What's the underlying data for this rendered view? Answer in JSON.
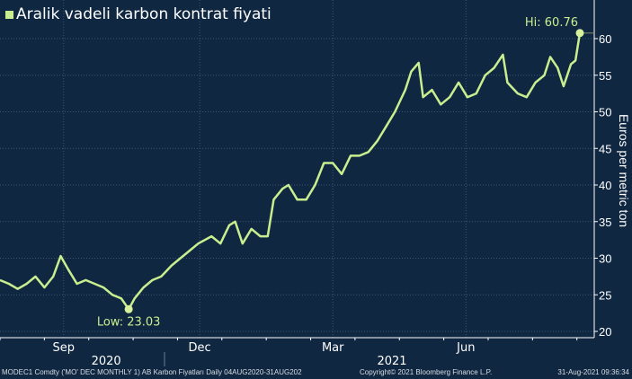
{
  "chart_data": {
    "type": "line",
    "title": "Aralik vadeli karbon kontrat fiyati",
    "ylabel": "Euros per metric ton",
    "xlabel": "",
    "ylim": [
      20,
      64
    ],
    "y_ticks": [
      20,
      25,
      30,
      35,
      40,
      45,
      50,
      55,
      60
    ],
    "x_unit": "days since 04-Aug-2020",
    "x_range": [
      0,
      392
    ],
    "month_labels": [
      {
        "label": "Sep",
        "day": 43
      },
      {
        "label": "Dec",
        "day": 135
      },
      {
        "label": "Mar",
        "day": 225
      },
      {
        "label": "Jun",
        "day": 315
      }
    ],
    "year_labels": [
      {
        "label": "2020",
        "day": 87
      },
      {
        "label": "2021",
        "day": 265
      }
    ],
    "grid": true,
    "line_color": "#c9ee8f",
    "background": "#0f2741",
    "series": [
      {
        "name": "Aralik vadeli karbon kontrat fiyati",
        "x": [
          0,
          6,
          12,
          18,
          24,
          30,
          36,
          41,
          46,
          52,
          58,
          64,
          70,
          76,
          82,
          87,
          91,
          97,
          103,
          109,
          116,
          122,
          128,
          134,
          143,
          149,
          155,
          159,
          164,
          170,
          176,
          181,
          185,
          191,
          195,
          201,
          207,
          213,
          219,
          225,
          231,
          237,
          243,
          249,
          255,
          261,
          267,
          274,
          278,
          283,
          286,
          292,
          298,
          304,
          310,
          316,
          322,
          328,
          334,
          340,
          343,
          350,
          356,
          362,
          368,
          372,
          377,
          381,
          386,
          389,
          392
        ],
        "values": [
          27,
          26.5,
          25.8,
          26.5,
          27.5,
          26,
          27.5,
          30.3,
          28.5,
          26.5,
          27,
          26.5,
          26,
          25,
          24.5,
          23.03,
          24.5,
          26,
          27,
          27.5,
          29,
          30,
          31,
          32,
          33,
          32,
          34.5,
          35,
          32,
          34,
          33,
          33,
          38,
          39.5,
          40,
          38,
          38,
          40,
          43,
          43,
          41.5,
          44,
          44,
          44.5,
          46,
          48,
          50,
          53,
          55.5,
          56.7,
          52,
          53,
          51,
          52,
          54,
          52,
          52.5,
          55,
          56,
          57.8,
          54,
          52.5,
          52,
          54,
          55,
          57.5,
          56,
          53.5,
          56.5,
          57,
          60.76
        ]
      }
    ],
    "annotations": [
      {
        "text": "Low: 23.03",
        "day": 87,
        "value": 23.03
      },
      {
        "text": "Hi: 60.76",
        "day": 392,
        "value": 60.76
      }
    ]
  },
  "footer": {
    "source": "MODEC1 Comdty ('MO' DEC MONTHLY 1) AB Karbon Fiyatları  Daily 04AUG2020-31AUG202",
    "copyright": "Copyright© 2021 Bloomberg Finance L.P.",
    "timestamp": "31-Aug-2021 09:36:34"
  }
}
